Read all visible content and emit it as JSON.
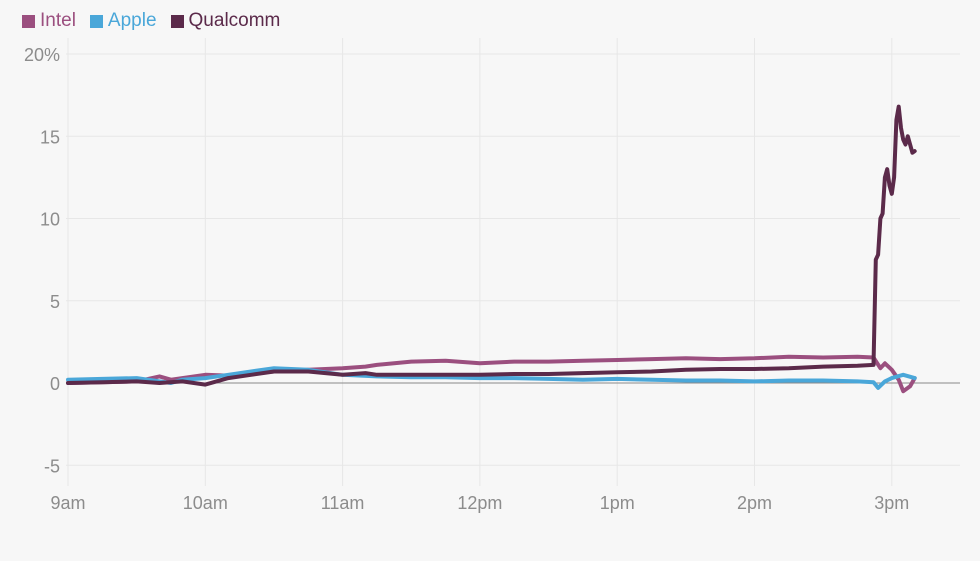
{
  "chart_data": {
    "type": "line",
    "title": "",
    "xlabel": "",
    "ylabel": "",
    "x_ticks": [
      "9am",
      "10am",
      "11am",
      "12pm",
      "1pm",
      "2pm",
      "3pm"
    ],
    "y_ticks": [
      "20%",
      "15",
      "10",
      "5",
      "0",
      "-5"
    ],
    "ylim": [
      -6,
      21
    ],
    "grid": true,
    "legend_position": "top-left",
    "series": [
      {
        "name": "Intel",
        "color": "#9b4f7f",
        "x": [
          "9:00",
          "9:15",
          "9:30",
          "9:40",
          "9:45",
          "9:50",
          "10:00",
          "10:10",
          "10:20",
          "10:30",
          "10:45",
          "11:00",
          "11:10",
          "11:15",
          "11:30",
          "11:45",
          "12:00",
          "12:15",
          "12:30",
          "12:45",
          "13:00",
          "13:15",
          "13:30",
          "13:45",
          "14:00",
          "14:15",
          "14:30",
          "14:45",
          "14:52",
          "14:55",
          "14:57",
          "15:00",
          "15:03",
          "15:05",
          "15:08",
          "15:10"
        ],
        "values": [
          0.0,
          0.05,
          0.1,
          0.4,
          0.2,
          0.3,
          0.5,
          0.45,
          0.6,
          0.7,
          0.8,
          0.9,
          1.0,
          1.1,
          1.3,
          1.35,
          1.2,
          1.3,
          1.3,
          1.35,
          1.4,
          1.45,
          1.5,
          1.45,
          1.5,
          1.6,
          1.55,
          1.6,
          1.55,
          0.9,
          1.2,
          0.8,
          0.2,
          -0.5,
          -0.2,
          0.3
        ]
      },
      {
        "name": "Apple",
        "color": "#4aa7d9",
        "x": [
          "9:00",
          "9:15",
          "9:30",
          "9:40",
          "9:45",
          "9:50",
          "10:00",
          "10:10",
          "10:20",
          "10:30",
          "10:45",
          "11:00",
          "11:15",
          "11:30",
          "11:45",
          "12:00",
          "12:15",
          "12:30",
          "12:45",
          "13:00",
          "13:15",
          "13:30",
          "13:45",
          "14:00",
          "14:15",
          "14:30",
          "14:45",
          "14:52",
          "14:54",
          "14:57",
          "15:00",
          "15:05",
          "15:10"
        ],
        "values": [
          0.2,
          0.25,
          0.3,
          0.1,
          0.0,
          0.2,
          0.3,
          0.5,
          0.7,
          0.9,
          0.8,
          0.5,
          0.4,
          0.35,
          0.35,
          0.3,
          0.3,
          0.25,
          0.2,
          0.25,
          0.2,
          0.15,
          0.15,
          0.1,
          0.15,
          0.15,
          0.1,
          0.05,
          -0.3,
          0.1,
          0.3,
          0.5,
          0.3
        ]
      },
      {
        "name": "Qualcomm",
        "color": "#5b2a4a",
        "x": [
          "9:00",
          "9:15",
          "9:30",
          "9:40",
          "9:50",
          "10:00",
          "10:10",
          "10:20",
          "10:30",
          "10:45",
          "11:00",
          "11:10",
          "11:15",
          "11:30",
          "11:45",
          "12:00",
          "12:15",
          "12:30",
          "12:45",
          "13:00",
          "13:15",
          "13:30",
          "13:45",
          "14:00",
          "14:15",
          "14:30",
          "14:45",
          "14:52",
          "14:53",
          "14:54",
          "14:55",
          "14:56",
          "14:57",
          "14:58",
          "14:59",
          "15:00",
          "15:01",
          "15:02",
          "15:03",
          "15:04",
          "15:05",
          "15:06",
          "15:07",
          "15:08",
          "15:09",
          "15:10"
        ],
        "values": [
          0.0,
          0.05,
          0.1,
          0.0,
          0.1,
          -0.1,
          0.3,
          0.5,
          0.7,
          0.7,
          0.5,
          0.6,
          0.5,
          0.5,
          0.5,
          0.5,
          0.55,
          0.55,
          0.6,
          0.65,
          0.7,
          0.8,
          0.85,
          0.85,
          0.9,
          1.0,
          1.05,
          1.1,
          7.5,
          7.8,
          10.0,
          10.3,
          12.5,
          13.0,
          12.0,
          11.5,
          12.5,
          16.0,
          16.8,
          15.5,
          14.8,
          14.5,
          15.0,
          14.5,
          14.0,
          14.1
        ]
      }
    ]
  }
}
